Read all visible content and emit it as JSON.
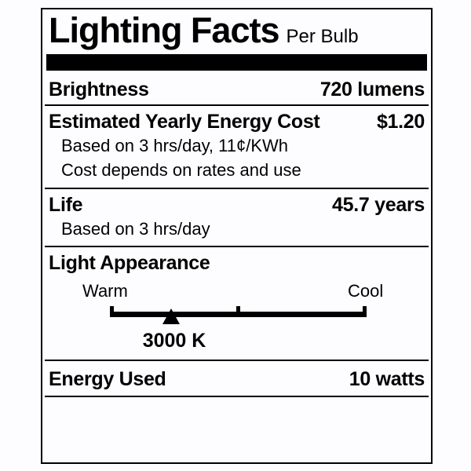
{
  "label": {
    "title": "Lighting Facts",
    "subtitle": "Per Bulb",
    "colors": {
      "ink": "#000000",
      "background": "#fdfdff"
    },
    "brightness": {
      "label": "Brightness",
      "value": "720 lumens"
    },
    "energy_cost": {
      "label": "Estimated Yearly Energy Cost",
      "value": "$1.20",
      "notes": [
        "Based on 3 hrs/day, 11¢/KWh",
        "Cost depends on rates and use"
      ]
    },
    "life": {
      "label": "Life",
      "value": "45.7 years",
      "notes": [
        "Based on 3 hrs/day"
      ]
    },
    "light_appearance": {
      "label": "Light Appearance",
      "warm_label": "Warm",
      "cool_label": "Cool",
      "color_temperature": "3000 K",
      "marker_icon": "triangle-up",
      "marker_position_percent": 24
    },
    "energy_used": {
      "label": "Energy Used",
      "value": "10 watts"
    }
  }
}
